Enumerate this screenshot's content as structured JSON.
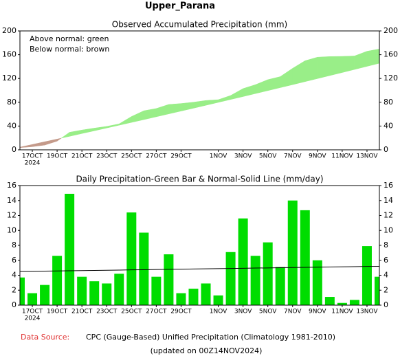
{
  "header": {
    "title": "Upper_Parana"
  },
  "chart_data": [
    {
      "type": "area",
      "title": "Observed Accumulated Precipitation (mm)",
      "annotations": [
        "Above normal: green",
        "Below normal: brown"
      ],
      "categories": [
        null,
        "17OCT",
        null,
        "19OCT",
        null,
        "21OCT",
        null,
        "23OCT",
        null,
        "25OCT",
        null,
        "27OCT",
        null,
        "29OCT",
        null,
        null,
        "1NOV",
        null,
        "3NOV",
        null,
        "5NOV",
        null,
        "7NOV",
        null,
        "9NOV",
        null,
        "11NOV",
        null,
        "13NOV",
        null
      ],
      "year_label": "2024",
      "series": [
        {
          "values": [
            3.7,
            5.3,
            8.0,
            14.6,
            29.5,
            33.3,
            36.5,
            39.4,
            43.6,
            56.0,
            65.7,
            69.5,
            76.3,
            77.9,
            80.1,
            83.0,
            84.3,
            91.4,
            103.0,
            109.6,
            118.0,
            123.1,
            137.1,
            149.8,
            155.8,
            156.9,
            157.2,
            157.9,
            165.8,
            169.6
          ]
        },
        {
          "values": [
            4.5,
            9.0,
            13.6,
            18.1,
            22.7,
            27.4,
            32.0,
            36.7,
            41.4,
            46.1,
            50.8,
            55.6,
            60.4,
            65.2,
            70.0,
            74.9,
            79.8,
            84.7,
            89.6,
            94.6,
            99.6,
            104.6,
            109.6,
            114.7,
            119.8,
            124.9,
            130.0,
            135.2,
            140.4,
            145.6
          ]
        }
      ],
      "above_color": "#99ee88",
      "below_color": "#c49a8a",
      "ylim": [
        0,
        200
      ],
      "yticks": [
        0,
        40,
        80,
        120,
        160,
        200
      ]
    },
    {
      "type": "bar",
      "title": "Daily Precipitation-Green Bar & Normal-Solid Line (mm/day)",
      "categories": [
        null,
        "17OCT",
        null,
        "19OCT",
        null,
        "21OCT",
        null,
        "23OCT",
        null,
        "25OCT",
        null,
        "27OCT",
        null,
        "29OCT",
        null,
        null,
        "1NOV",
        null,
        "3NOV",
        null,
        "5NOV",
        null,
        "7NOV",
        null,
        "9NOV",
        null,
        "11NOV",
        null,
        "13NOV",
        null
      ],
      "year_label": "2024",
      "series": [
        {
          "type": "bar",
          "color": "#00dd00",
          "values": [
            3.7,
            1.6,
            2.7,
            6.6,
            14.9,
            3.8,
            3.2,
            2.9,
            4.2,
            12.4,
            9.7,
            3.8,
            6.8,
            1.6,
            2.2,
            2.9,
            1.3,
            7.1,
            11.6,
            6.6,
            8.4,
            5.1,
            14.0,
            12.7,
            6.0,
            1.1,
            0.3,
            0.7,
            7.9,
            3.8
          ]
        },
        {
          "type": "line",
          "color": "#000000",
          "values": [
            4.5,
            4.52,
            4.55,
            4.57,
            4.6,
            4.62,
            4.64,
            4.67,
            4.69,
            4.72,
            4.74,
            4.77,
            4.79,
            4.81,
            4.84,
            4.86,
            4.89,
            4.91,
            4.93,
            4.96,
            4.98,
            5.01,
            5.03,
            5.06,
            5.08,
            5.1,
            5.13,
            5.15,
            5.18,
            5.2
          ]
        }
      ],
      "ylim": [
        0,
        16
      ],
      "yticks": [
        0,
        2,
        4,
        6,
        8,
        10,
        12,
        14,
        16
      ]
    }
  ],
  "footer": {
    "source_label": "Data Source:",
    "source": "CPC (Gauge-Based) Unified Precipitation (Climatology 1981-2010)",
    "updated": "(updated on 00Z14NOV2024)"
  }
}
